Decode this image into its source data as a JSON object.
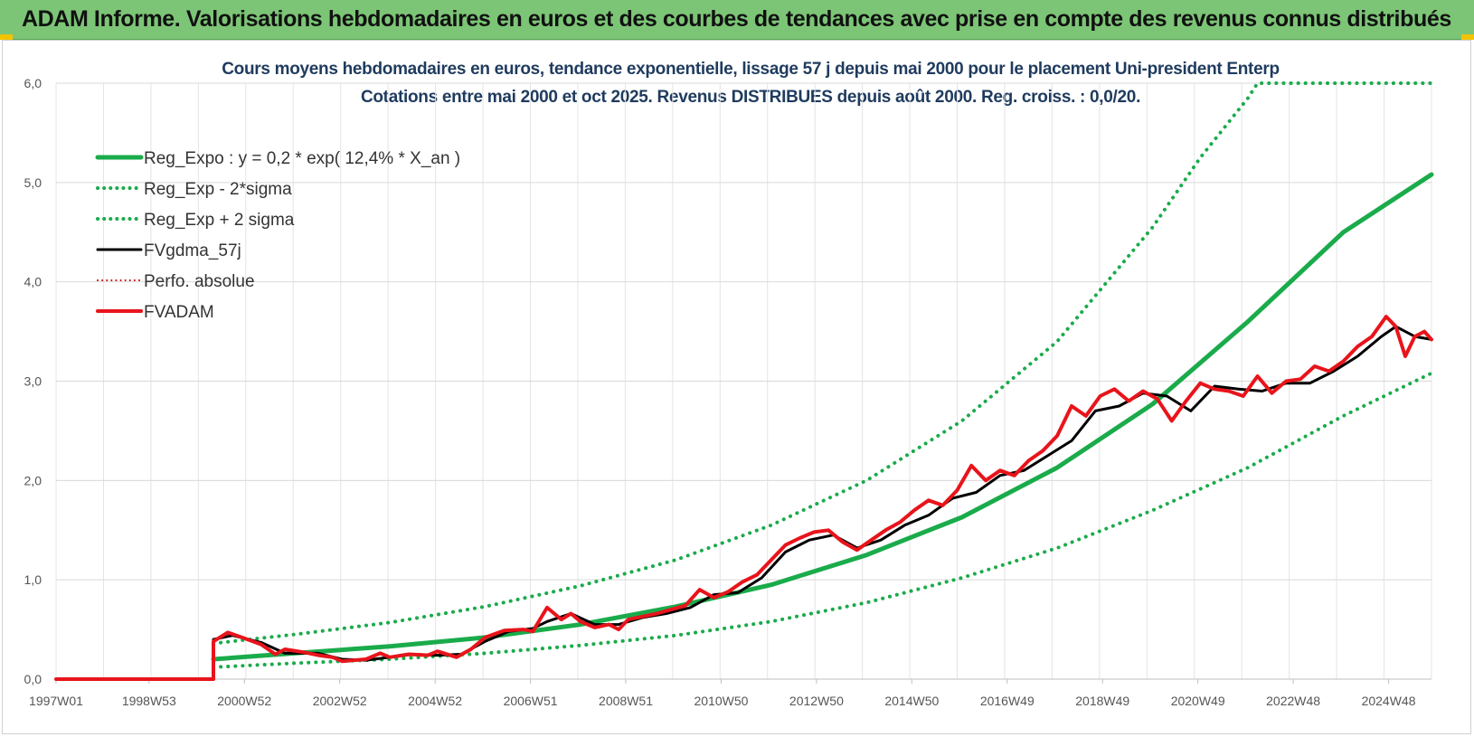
{
  "banner": {
    "title": "ADAM Informe. Valorisations hebdomadaires en euros et des courbes de tendances avec prise en compte des revenus connus distribués"
  },
  "colors": {
    "banner_bg": "#7cc576",
    "reg_green": "#1aab4b",
    "fvadam_red": "#e8141b",
    "fvgdma_black": "#000000",
    "title_blue": "#1f3b5e"
  },
  "chart_data": {
    "type": "line",
    "title": "Cours moyens hebdomadaires en euros, tendance exponentielle, lissage 57 j depuis mai 2000 pour le placement Uni-president Enterp",
    "subtitle": "Cotations entre mai 2000 et oct 2025. Revenus DISTRIBUES depuis août 2000. Reg. croiss. : 0,0/20.",
    "xlabel": "",
    "ylabel": "",
    "xlim": [
      1997.0,
      2025.85
    ],
    "ylim": [
      0,
      6
    ],
    "grid": true,
    "legend_position": "top-left",
    "x_ticks": [
      {
        "x": 1997.0,
        "label": "1997W01"
      },
      {
        "x": 1998.95,
        "label": "1998W53"
      },
      {
        "x": 2000.95,
        "label": "2000W52"
      },
      {
        "x": 2002.95,
        "label": "2002W52"
      },
      {
        "x": 2004.95,
        "label": "2004W52"
      },
      {
        "x": 2006.95,
        "label": "2006W51"
      },
      {
        "x": 2008.95,
        "label": "2008W51"
      },
      {
        "x": 2010.95,
        "label": "2010W50"
      },
      {
        "x": 2012.95,
        "label": "2012W50"
      },
      {
        "x": 2014.95,
        "label": "2014W50"
      },
      {
        "x": 2016.95,
        "label": "2016W49"
      },
      {
        "x": 2018.95,
        "label": "2018W49"
      },
      {
        "x": 2020.95,
        "label": "2020W49"
      },
      {
        "x": 2022.95,
        "label": "2022W48"
      },
      {
        "x": 2024.95,
        "label": "2024W48"
      }
    ],
    "y_ticks": [
      {
        "y": 0,
        "label": "0,0"
      },
      {
        "y": 1,
        "label": "1,0"
      },
      {
        "y": 2,
        "label": "2,0"
      },
      {
        "y": 3,
        "label": "3,0"
      },
      {
        "y": 4,
        "label": "4,0"
      },
      {
        "y": 5,
        "label": "5,0"
      },
      {
        "y": 6,
        "label": "6,0"
      }
    ],
    "series": [
      {
        "name": "Reg_Expo : y = 0,2 * exp( 12,4% *  X_an )",
        "style": "solid",
        "color": "#1aab4b",
        "width": 5,
        "x": [
          2000.3,
          2002,
          2004,
          2006,
          2008,
          2010,
          2012,
          2014,
          2016,
          2018,
          2020,
          2022,
          2024,
          2025.85
        ],
        "values": [
          0.2,
          0.26,
          0.33,
          0.42,
          0.55,
          0.73,
          0.95,
          1.25,
          1.63,
          2.13,
          2.77,
          3.6,
          4.5,
          5.08
        ]
      },
      {
        "name": "Reg_Exp - 2*sigma",
        "style": "dotted",
        "color": "#1aab4b",
        "width": 4,
        "x": [
          2000.3,
          2002,
          2004,
          2006,
          2008,
          2010,
          2012,
          2014,
          2016,
          2018,
          2020,
          2022,
          2024,
          2025.85
        ],
        "values": [
          0.12,
          0.16,
          0.2,
          0.26,
          0.34,
          0.44,
          0.58,
          0.77,
          1.02,
          1.32,
          1.7,
          2.13,
          2.65,
          3.08
        ]
      },
      {
        "name": "Reg_Exp + 2 sigma",
        "style": "dotted",
        "color": "#1aab4b",
        "width": 4,
        "x": [
          2000.3,
          2002,
          2004,
          2006,
          2008,
          2010,
          2012,
          2014,
          2016,
          2018,
          2020,
          2021,
          2022,
          2022.2,
          2025.85
        ],
        "values": [
          0.36,
          0.45,
          0.57,
          0.73,
          0.94,
          1.2,
          1.55,
          2.0,
          2.6,
          3.4,
          4.55,
          5.25,
          5.85,
          6.0,
          6.0
        ]
      },
      {
        "name": "FVgdma_57j",
        "style": "solid",
        "color": "#000000",
        "width": 3,
        "x": [
          1997.0,
          2000.3,
          2000.3,
          2000.7,
          2001.3,
          2001.8,
          2002.5,
          2003.0,
          2003.5,
          2004.0,
          2004.5,
          2005.0,
          2005.5,
          2006.0,
          2006.5,
          2007.0,
          2007.3,
          2007.8,
          2008.3,
          2008.8,
          2009.3,
          2009.8,
          2010.3,
          2010.8,
          2011.3,
          2011.8,
          2012.3,
          2012.8,
          2013.3,
          2013.8,
          2014.3,
          2014.8,
          2015.3,
          2015.8,
          2016.3,
          2016.8,
          2017.3,
          2017.8,
          2018.3,
          2018.8,
          2019.3,
          2019.8,
          2020.3,
          2020.8,
          2021.3,
          2021.8,
          2022.3,
          2022.8,
          2023.3,
          2023.8,
          2024.3,
          2024.8,
          2025.1,
          2025.5,
          2025.85
        ],
        "values": [
          0,
          0,
          0.4,
          0.44,
          0.37,
          0.26,
          0.26,
          0.2,
          0.19,
          0.22,
          0.25,
          0.24,
          0.25,
          0.38,
          0.48,
          0.51,
          0.58,
          0.66,
          0.55,
          0.55,
          0.62,
          0.66,
          0.72,
          0.85,
          0.87,
          1.02,
          1.28,
          1.4,
          1.45,
          1.32,
          1.4,
          1.55,
          1.65,
          1.82,
          1.88,
          2.05,
          2.1,
          2.25,
          2.4,
          2.7,
          2.75,
          2.88,
          2.85,
          2.7,
          2.95,
          2.92,
          2.9,
          2.98,
          2.98,
          3.1,
          3.25,
          3.45,
          3.55,
          3.45,
          3.42
        ]
      },
      {
        "name": "Perfo. absolue",
        "style": "dotted",
        "color": "#c00000",
        "width": 2,
        "x": [],
        "values": []
      },
      {
        "name": "FVADAM",
        "style": "solid",
        "color": "#e8141b",
        "width": 4,
        "x": [
          1997.0,
          2000.3,
          2000.3,
          2000.6,
          2000.9,
          2001.3,
          2001.6,
          2001.8,
          2002.2,
          2002.5,
          2002.8,
          2003.0,
          2003.5,
          2003.8,
          2004.0,
          2004.4,
          2004.8,
          2005.0,
          2005.4,
          2005.7,
          2006.0,
          2006.4,
          2006.8,
          2007.0,
          2007.3,
          2007.6,
          2007.8,
          2008.0,
          2008.3,
          2008.6,
          2008.8,
          2009.0,
          2009.3,
          2009.6,
          2009.9,
          2010.2,
          2010.5,
          2010.8,
          2011.1,
          2011.4,
          2011.7,
          2012.0,
          2012.3,
          2012.6,
          2012.9,
          2013.2,
          2013.5,
          2013.8,
          2014.1,
          2014.4,
          2014.7,
          2015.0,
          2015.3,
          2015.6,
          2015.9,
          2016.2,
          2016.5,
          2016.8,
          2017.1,
          2017.4,
          2017.7,
          2018.0,
          2018.3,
          2018.6,
          2018.9,
          2019.2,
          2019.5,
          2019.8,
          2020.1,
          2020.4,
          2020.7,
          2021.0,
          2021.3,
          2021.6,
          2021.9,
          2022.2,
          2022.5,
          2022.8,
          2023.1,
          2023.4,
          2023.7,
          2024.0,
          2024.3,
          2024.6,
          2024.9,
          2025.1,
          2025.3,
          2025.5,
          2025.7,
          2025.85
        ],
        "values": [
          0,
          0,
          0.38,
          0.47,
          0.42,
          0.35,
          0.25,
          0.3,
          0.27,
          0.24,
          0.22,
          0.18,
          0.2,
          0.26,
          0.22,
          0.25,
          0.24,
          0.28,
          0.22,
          0.3,
          0.42,
          0.49,
          0.5,
          0.48,
          0.72,
          0.6,
          0.66,
          0.58,
          0.52,
          0.55,
          0.5,
          0.6,
          0.63,
          0.66,
          0.7,
          0.74,
          0.9,
          0.82,
          0.88,
          0.98,
          1.05,
          1.2,
          1.35,
          1.42,
          1.48,
          1.5,
          1.38,
          1.3,
          1.4,
          1.5,
          1.58,
          1.7,
          1.8,
          1.75,
          1.9,
          2.15,
          2.0,
          2.1,
          2.05,
          2.2,
          2.3,
          2.45,
          2.75,
          2.65,
          2.85,
          2.92,
          2.8,
          2.9,
          2.82,
          2.6,
          2.8,
          2.98,
          2.92,
          2.9,
          2.85,
          3.05,
          2.88,
          3.0,
          3.02,
          3.15,
          3.1,
          3.2,
          3.35,
          3.45,
          3.65,
          3.55,
          3.25,
          3.45,
          3.5,
          3.42
        ]
      }
    ]
  }
}
